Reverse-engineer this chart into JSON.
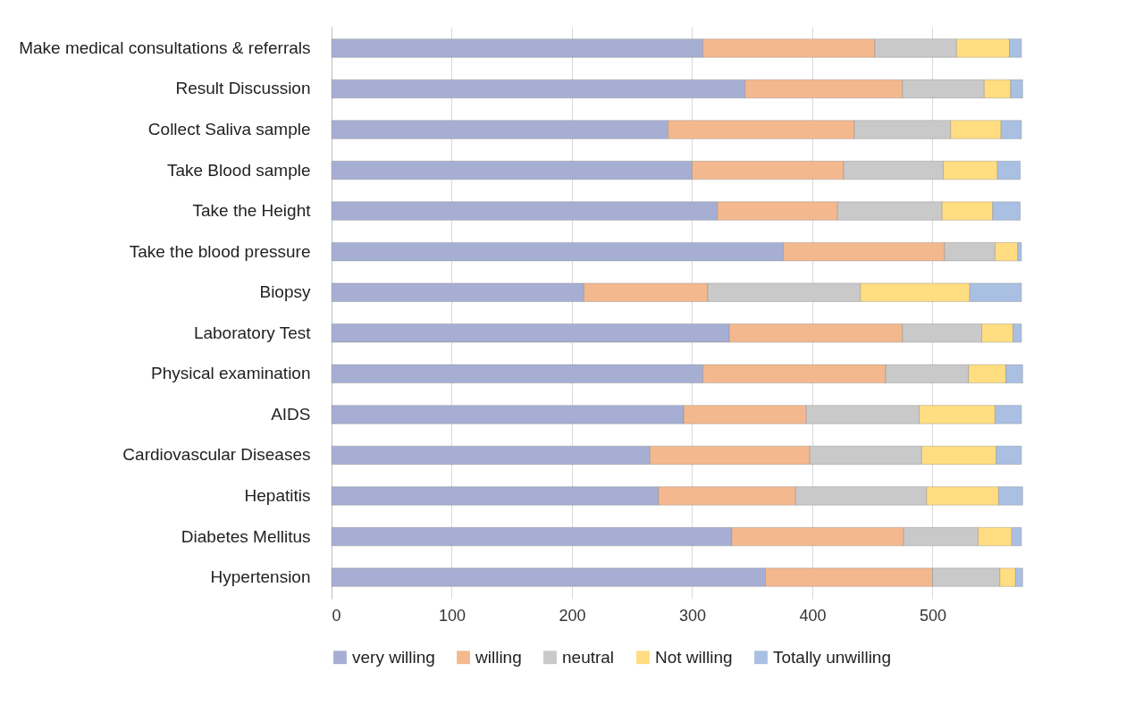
{
  "chart_data": {
    "type": "bar",
    "orientation": "horizontal",
    "stacked": true,
    "categories": [
      "Make medical consultations & referrals",
      "Result Discussion",
      "Collect Saliva sample",
      "Take Blood sample",
      "Take the Height",
      "Take the blood pressure",
      "Biopsy",
      "Laboratory Test",
      "Physical examination",
      "AIDS",
      "Cardiovascular Diseases",
      "Hepatitis",
      "Diabetes Mellitus",
      "Hypertension"
    ],
    "series": [
      {
        "name": "very willing",
        "color": "#a6afd3",
        "values": [
          309,
          344,
          280,
          300,
          321,
          376,
          210,
          331,
          309,
          293,
          265,
          272,
          333,
          361
        ]
      },
      {
        "name": "willing",
        "color": "#f4b88f",
        "values": [
          143,
          131,
          155,
          126,
          100,
          134,
          103,
          144,
          152,
          102,
          133,
          114,
          143,
          139
        ]
      },
      {
        "name": "neutral",
        "color": "#c9c9c9",
        "values": [
          68,
          68,
          80,
          83,
          87,
          42,
          127,
          66,
          69,
          94,
          93,
          109,
          62,
          56
        ]
      },
      {
        "name": "Not willing",
        "color": "#ffdd80",
        "values": [
          44,
          22,
          42,
          45,
          42,
          19,
          91,
          26,
          31,
          63,
          62,
          60,
          28,
          13
        ]
      },
      {
        "name": "Totally unwilling",
        "color": "#a9c0e3",
        "values": [
          10,
          10,
          17,
          19,
          23,
          3,
          43,
          7,
          14,
          22,
          21,
          20,
          8,
          6
        ]
      }
    ],
    "xlim": [
      0,
      574
    ],
    "xticks": [
      0,
      100,
      200,
      300,
      400,
      500
    ],
    "grid": "x",
    "legend": "bottom"
  }
}
